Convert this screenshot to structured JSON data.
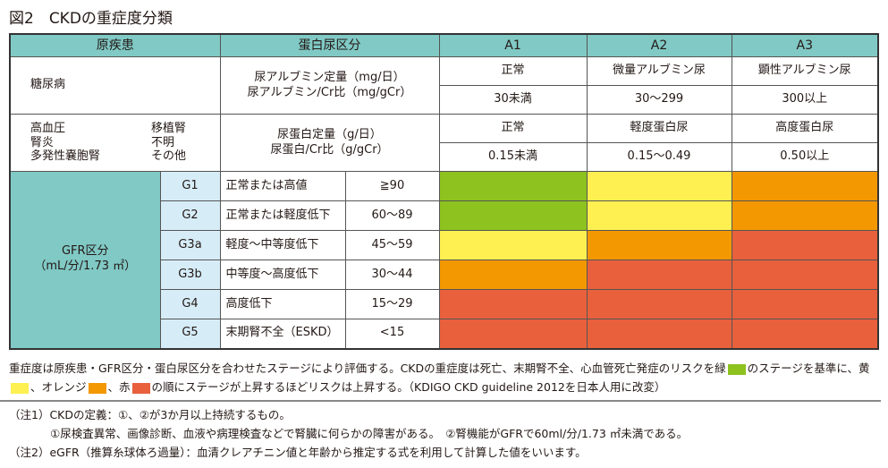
{
  "title": "図2　CKDの重症度分類",
  "colors": {
    "header": "#80c9c5",
    "gcode": "#d6edf8",
    "green": "#8dc21f",
    "yellow": "#fdf050",
    "orange": "#f39800",
    "red": "#e8603c"
  },
  "header": {
    "cause": "原疾患",
    "proteinuria": "蛋白尿区分",
    "a1": "A1",
    "a2": "A2",
    "a3": "A3"
  },
  "diabetes": {
    "cause": "糖尿病",
    "measure1": "尿アルブミン定量（mg/日）",
    "measure2": "尿アルブミン/Cr比（mg/gCr）",
    "labels": [
      "正常",
      "微量アルブミン尿",
      "顕性アルブミン尿"
    ],
    "ranges": [
      "30未満",
      "30～299",
      "300以上"
    ]
  },
  "other": {
    "causes": [
      "高血圧",
      "移植腎",
      "腎炎",
      "不明",
      "多発性嚢胞腎",
      "その他"
    ],
    "measure1": "尿蛋白定量（g/日）",
    "measure2": "尿蛋白/Cr比（g/gCr）",
    "labels": [
      "正常",
      "軽度蛋白尿",
      "高度蛋白尿"
    ],
    "ranges": [
      "0.15未満",
      "0.15～0.49",
      "0.50以上"
    ]
  },
  "gfr": {
    "label1": "GFR区分",
    "label2": "（mL/分/1.73 ㎡）",
    "rows": [
      {
        "code": "G1",
        "desc": "正常または高値",
        "value": "≧90",
        "risk": [
          "green",
          "yellow",
          "orange"
        ]
      },
      {
        "code": "G2",
        "desc": "正常または軽度低下",
        "value": "60～89",
        "risk": [
          "green",
          "yellow",
          "orange"
        ]
      },
      {
        "code": "G3a",
        "desc": "軽度～中等度低下",
        "value": "45～59",
        "risk": [
          "yellow",
          "orange",
          "red"
        ]
      },
      {
        "code": "G3b",
        "desc": "中等度～高度低下",
        "value": "30～44",
        "risk": [
          "orange",
          "red",
          "red"
        ]
      },
      {
        "code": "G4",
        "desc": "高度低下",
        "value": "15～29",
        "risk": [
          "red",
          "red",
          "red"
        ]
      },
      {
        "code": "G5",
        "desc": "末期腎不全（ESKD）",
        "value": "<15",
        "risk": [
          "red",
          "red",
          "red"
        ]
      }
    ]
  },
  "notes": {
    "p1": "重症度は原疾患・GFR区分・蛋白尿区分を合わせたステージにより評価する。CKDの重症度は死亡、末期腎不全、心血管死亡発症のリスクを緑",
    "p2": "のステージを基準に、黄",
    "p3": "、オレンジ",
    "p4": "、赤",
    "p5": "の順にステージが上昇するほどリスクは上昇する。（KDIGO CKD guideline 2012を日本人用に改変）",
    "n1": "（注1）CKDの定義：①、②が3か月以上持続するもの。",
    "n1a": "①尿検査異常、画像診断、血液や病理検査などで腎臓に何らかの障害がある。　②腎機能がGFRで60ml/分/1.73 ㎡未満である。",
    "n2": "（注2）eGFR（推算糸球体ろ過量）：血清クレアチニン値と年齢から推定する式を利用して計算した値をいいます。"
  }
}
